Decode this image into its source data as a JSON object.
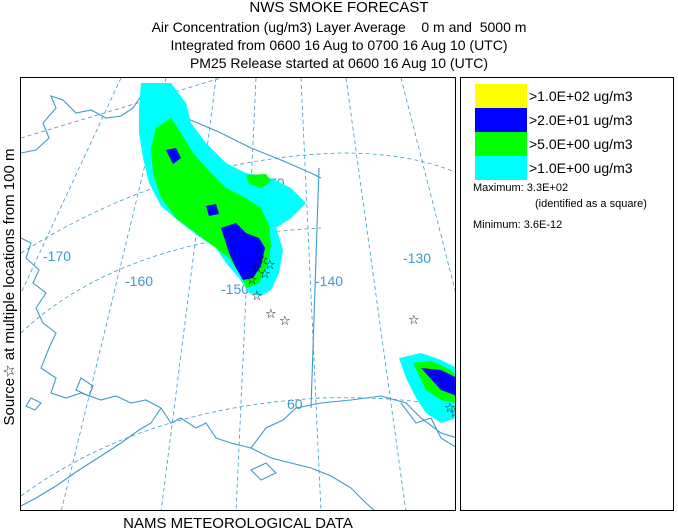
{
  "header": {
    "title": "NWS SMOKE FORECAST",
    "line2": "Air Concentration (ug/m3) Layer Average    0 m and  5000 m",
    "line3": "Integrated from 0600 16 Aug to 0700 16 Aug 10 (UTC)",
    "line4": "PM25 Release started at 0600 16 Aug 10 (UTC)"
  },
  "footer": "NAMS METEOROLOGICAL DATA",
  "side_label": "Source☆ at multiple locations from 100 m",
  "map": {
    "grid_labels": [
      "-170",
      "-160",
      "-150",
      "-140",
      "-130",
      "60",
      "70"
    ],
    "colors": {
      "coast": "#3c9cc8",
      "grid": "#3c9cc8"
    }
  },
  "legend": {
    "items": [
      {
        "label": ">1.0E+02 ug/m3",
        "color": "#ffff00"
      },
      {
        "label": ">2.0E+01 ug/m3",
        "color": "#0000ff"
      },
      {
        "label": ">5.0E+00 ug/m3",
        "color": "#00ff00"
      },
      {
        "label": ">1.0E+00 ug/m3",
        "color": "#00ffff"
      }
    ],
    "maximum_label": "Maximum:",
    "maximum_value": "3.3E+02",
    "maximum_note": "(identified as a square)",
    "minimum_label": "Minimum:",
    "minimum_value": "3.6E-12"
  }
}
